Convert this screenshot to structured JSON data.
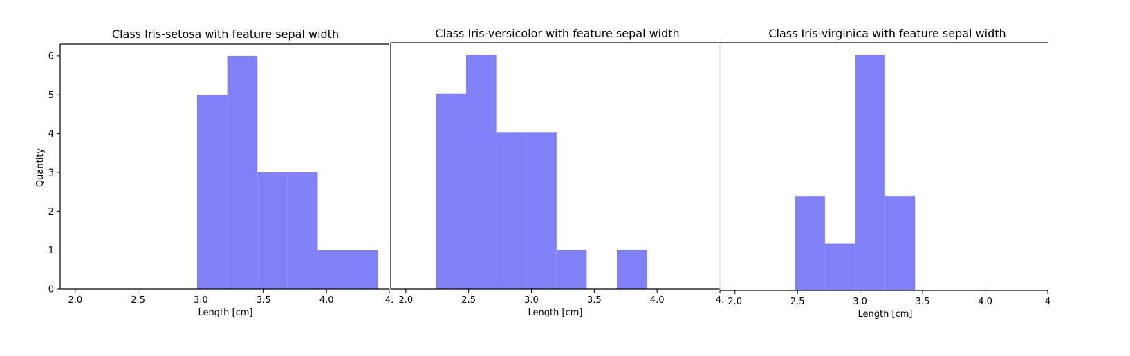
{
  "chart_data": [
    {
      "type": "bar",
      "title": "Class Iris-setosa with feature sepal width",
      "xlabel": "Length [cm]",
      "ylabel": "Quantity",
      "xlim": [
        1.88,
        4.5
      ],
      "ylim": [
        0,
        6.3
      ],
      "xticks": [
        "2.0",
        "2.5",
        "3.0",
        "3.5",
        "4.0",
        "4."
      ],
      "yticks": [
        "0",
        "1",
        "2",
        "3",
        "4",
        "5",
        "6"
      ],
      "bins": [
        {
          "x0": 2.97,
          "x1": 3.21,
          "value": 5
        },
        {
          "x0": 3.21,
          "x1": 3.45,
          "value": 6
        },
        {
          "x0": 3.45,
          "x1": 3.69,
          "value": 3
        },
        {
          "x0": 3.69,
          "x1": 3.93,
          "value": 3
        },
        {
          "x0": 3.93,
          "x1": 4.17,
          "value": 1
        },
        {
          "x0": 4.17,
          "x1": 4.41,
          "value": 1
        }
      ],
      "color": "#8080f7",
      "grid": false
    },
    {
      "type": "bar",
      "title": "Class Iris-versicolor with feature sepal width",
      "xlabel": "Length [cm]",
      "ylabel": "",
      "xlim": [
        1.88,
        4.5
      ],
      "ylim": [
        0,
        6.3
      ],
      "xticks": [
        "2.0",
        "2.5",
        "3.0",
        "3.5",
        "4.0",
        "4."
      ],
      "bins": [
        {
          "x0": 2.24,
          "x1": 2.48,
          "value": 5
        },
        {
          "x0": 2.48,
          "x1": 2.72,
          "value": 6
        },
        {
          "x0": 2.72,
          "x1": 2.96,
          "value": 4
        },
        {
          "x0": 2.96,
          "x1": 3.2,
          "value": 4
        },
        {
          "x0": 3.2,
          "x1": 3.44,
          "value": 1
        },
        {
          "x0": 3.68,
          "x1": 3.92,
          "value": 1
        }
      ],
      "color": "#8080f7",
      "grid": false
    },
    {
      "type": "bar",
      "title": "Class Iris-virginica with feature sepal width",
      "xlabel": "Length [cm]",
      "ylabel": "",
      "xlim": [
        1.88,
        4.5
      ],
      "ylim": [
        0,
        6.3
      ],
      "xticks": [
        "2.0",
        "2.5",
        "3.0",
        "3.5",
        "4.0",
        "4"
      ],
      "bins": [
        {
          "x0": 2.48,
          "x1": 2.72,
          "value": 2.4
        },
        {
          "x0": 2.72,
          "x1": 2.96,
          "value": 1.2
        },
        {
          "x0": 2.96,
          "x1": 3.2,
          "value": 6
        },
        {
          "x0": 3.2,
          "x1": 3.44,
          "value": 2.4
        }
      ],
      "color": "#8080f7",
      "grid": false
    }
  ]
}
